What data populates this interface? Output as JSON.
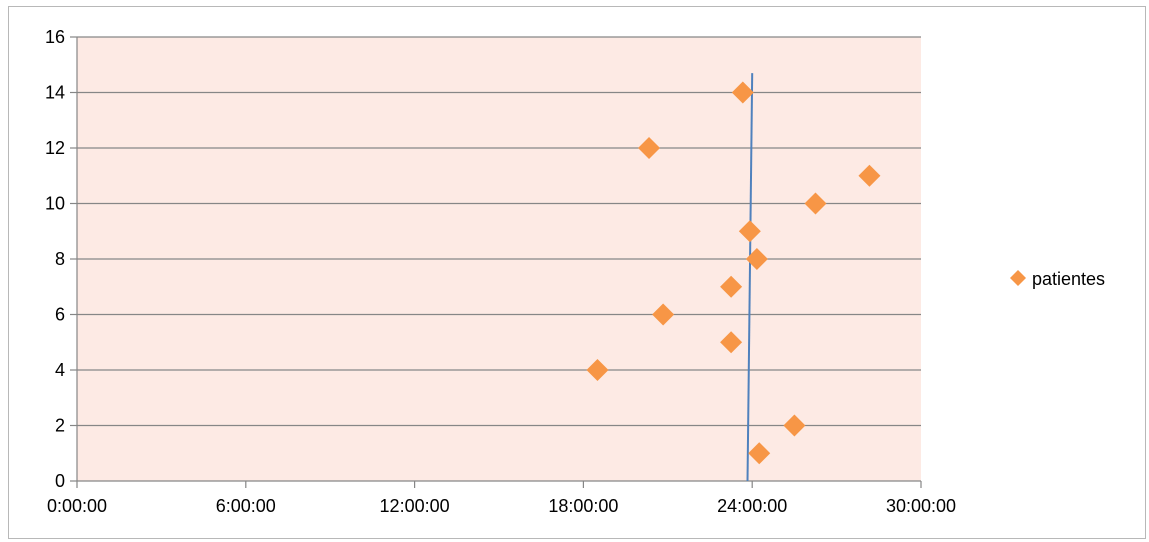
{
  "chart_data": {
    "type": "scatter",
    "title": "",
    "xlabel": "",
    "ylabel": "",
    "xlim": [
      "0:00:00",
      "30:00:00"
    ],
    "ylim": [
      0,
      16
    ],
    "x_ticks": [
      "0:00:00",
      "6:00:00",
      "12:00:00",
      "18:00:00",
      "24:00:00",
      "30:00:00"
    ],
    "y_ticks": [
      0,
      2,
      4,
      6,
      8,
      10,
      12,
      14,
      16
    ],
    "grid": "horizontal",
    "legend_position": "right",
    "series": [
      {
        "name": "patientes",
        "marker": "diamond",
        "color": "#f79646",
        "points": [
          {
            "x": "24:15:00",
            "y": 1
          },
          {
            "x": "25:30:00",
            "y": 2
          },
          {
            "x": "18:30:00",
            "y": 4
          },
          {
            "x": "23:15:00",
            "y": 5
          },
          {
            "x": "20:50:00",
            "y": 6
          },
          {
            "x": "23:15:00",
            "y": 7
          },
          {
            "x": "24:10:00",
            "y": 8
          },
          {
            "x": "23:55:00",
            "y": 9
          },
          {
            "x": "26:15:00",
            "y": 10
          },
          {
            "x": "28:10:00",
            "y": 11
          },
          {
            "x": "20:20:00",
            "y": 12
          },
          {
            "x": "23:40:00",
            "y": 14
          }
        ]
      }
    ],
    "reference_line": {
      "color": "#4f81bd",
      "from": {
        "x": "23:50:00",
        "y": 0
      },
      "to": {
        "x": "24:00:00",
        "y": 14.7
      }
    },
    "colors": {
      "plot_background": "#fdeae4",
      "gridline": "#868686",
      "axis": "#868686"
    }
  }
}
